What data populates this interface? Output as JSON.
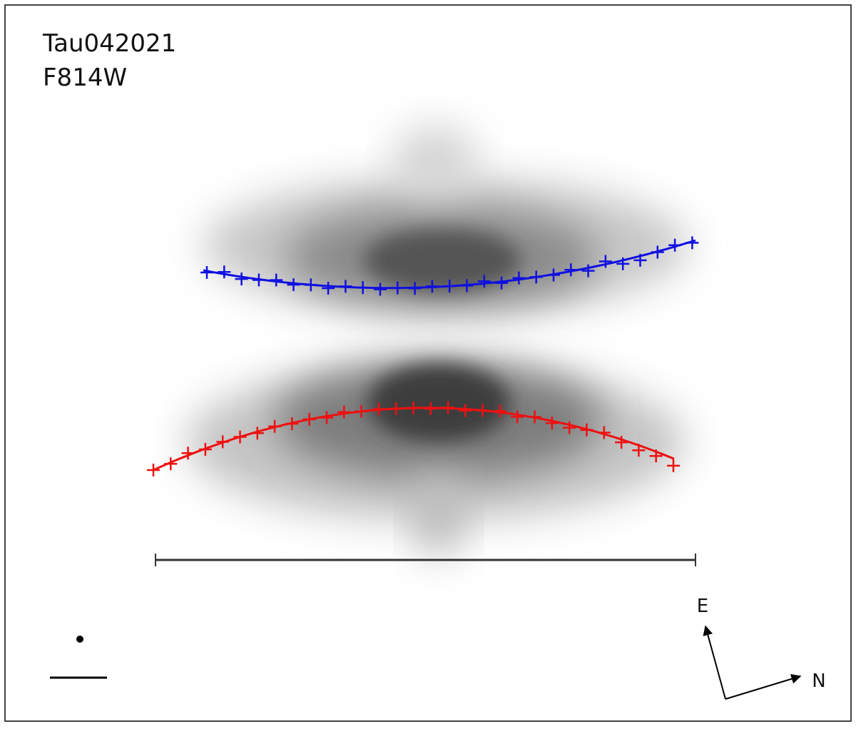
{
  "panel": {
    "object": "Tau042021",
    "filter": "F814W"
  },
  "compass": {
    "east": "E",
    "north": "N"
  }
}
